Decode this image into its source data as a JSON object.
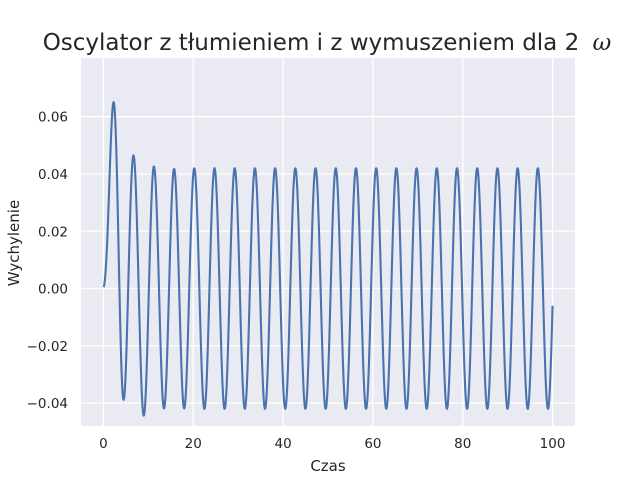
{
  "chart_data": {
    "type": "line",
    "title": "Oscylator z tłumieniem i z wymuszeniem dla 2",
    "title_symbol": "ω",
    "xlabel": "Czas",
    "ylabel": "Wychylenie",
    "xlim": [
      -5,
      105
    ],
    "ylim": [
      -0.048,
      0.0805
    ],
    "x_ticks": [
      0,
      20,
      40,
      60,
      80,
      100
    ],
    "x_tick_labels": [
      "0",
      "20",
      "40",
      "60",
      "80",
      "100"
    ],
    "y_ticks": [
      -0.04,
      -0.02,
      0.0,
      0.02,
      0.04,
      0.06
    ],
    "y_tick_labels": [
      "−0.04",
      "−0.02",
      "0.00",
      "0.02",
      "0.04",
      "0.06"
    ],
    "grid": true,
    "series": [
      {
        "color": "#4c72b0",
        "model": {
          "x_range": [
            0,
            100
          ],
          "steady_amplitude": 0.042,
          "steady_period": 4.5,
          "transient_peak": 0.072,
          "transient_peak_time": 2.7,
          "first_minimum": -0.035,
          "final_value": -0.006
        }
      }
    ]
  },
  "colors": {
    "plot_background": "#eaeaf2",
    "grid": "#ffffff",
    "line": "#4c72b0",
    "text": "#262626"
  }
}
